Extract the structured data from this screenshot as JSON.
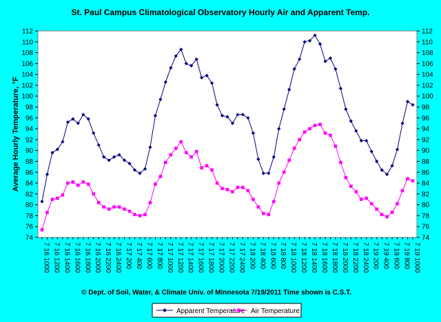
{
  "chart_data": {
    "type": "line",
    "title": "St. Paul Campus Climatological Observatory    Hourly Air and Apparent Temp.",
    "ylabel": "Average Hourly Temperature, °F",
    "xlabel": "",
    "credit": "© Dept. of Soil, Water, & Climate   Univ. of Minnesota 7/19/2011    Time shown is C.S.T.",
    "ylim": [
      74,
      112
    ],
    "ytick_step": 2,
    "grid": false,
    "legend_position": "bottom-center",
    "x_tick_labels": [
      "7 16 1000",
      "7 16 1200",
      "7 16 1400",
      "7 16 1600",
      "7 16 1800",
      "7 16 2000",
      "7 16 2200",
      "7 16 2400",
      "7 17 200",
      "7 17 400",
      "7 17 600",
      "7 17 800",
      "7 17 1000",
      "7 17 1200",
      "7 17 1400",
      "7 17 1600",
      "7 17 1800",
      "7 17 2000",
      "7 17 2200",
      "7 17 2400",
      "7 18 200",
      "7 18 400",
      "7 18 600",
      "7 18 800",
      "7 18 1000",
      "7 18 1200",
      "7 18 1400",
      "7 18 1600",
      "7 18 1800",
      "7 18 2000",
      "7 18 2200",
      "7 18 2400",
      "7 19 200",
      "7 19 400",
      "7 19 600",
      "7 19 800",
      "7 19 1000"
    ],
    "series": [
      {
        "name": "Apparent Temperature",
        "color": "#000080",
        "marker": "diamond",
        "values": [
          80.6,
          85.6,
          89.6,
          90.2,
          91.6,
          95.2,
          95.8,
          95.0,
          96.6,
          95.8,
          93.2,
          91.0,
          88.8,
          88.2,
          88.8,
          89.2,
          88.2,
          87.6,
          86.4,
          85.8,
          86.6,
          90.6,
          96.4,
          99.4,
          102.6,
          105.2,
          107.4,
          108.6,
          106.0,
          105.6,
          106.8,
          103.4,
          103.8,
          102.4,
          98.4,
          96.4,
          96.2,
          95.0,
          96.6,
          96.6,
          96.0,
          93.2,
          88.4,
          85.8,
          85.8,
          88.8,
          94.0,
          97.6,
          101.2,
          105.0,
          106.8,
          110.0,
          110.2,
          111.2,
          109.6,
          106.4,
          107.0,
          105.0,
          101.4,
          97.6,
          95.4,
          93.6,
          91.8,
          91.8,
          89.8,
          88.0,
          86.4,
          85.6,
          87.2,
          90.2,
          95.0,
          99.0,
          98.4
        ]
      },
      {
        "name": "Air Temperature",
        "color": "#FF00FF",
        "marker": "square",
        "values": [
          75.4,
          78.6,
          81.0,
          81.2,
          81.8,
          84.0,
          84.2,
          83.6,
          84.2,
          83.8,
          82.0,
          80.4,
          79.6,
          79.2,
          79.6,
          79.6,
          79.2,
          78.8,
          78.2,
          78.0,
          78.2,
          80.4,
          83.8,
          85.2,
          87.8,
          89.2,
          90.4,
          91.6,
          89.6,
          88.8,
          89.8,
          86.8,
          87.2,
          86.4,
          84.0,
          83.0,
          82.8,
          82.4,
          83.2,
          83.2,
          82.6,
          81.0,
          79.6,
          78.4,
          78.2,
          80.6,
          84.0,
          86.0,
          88.2,
          90.4,
          92.0,
          93.4,
          94.0,
          94.6,
          94.8,
          93.2,
          92.8,
          90.8,
          87.8,
          85.0,
          83.4,
          82.4,
          81.0,
          81.2,
          80.2,
          79.2,
          78.2,
          77.8,
          78.6,
          80.2,
          82.6,
          84.8,
          84.4
        ]
      }
    ]
  }
}
